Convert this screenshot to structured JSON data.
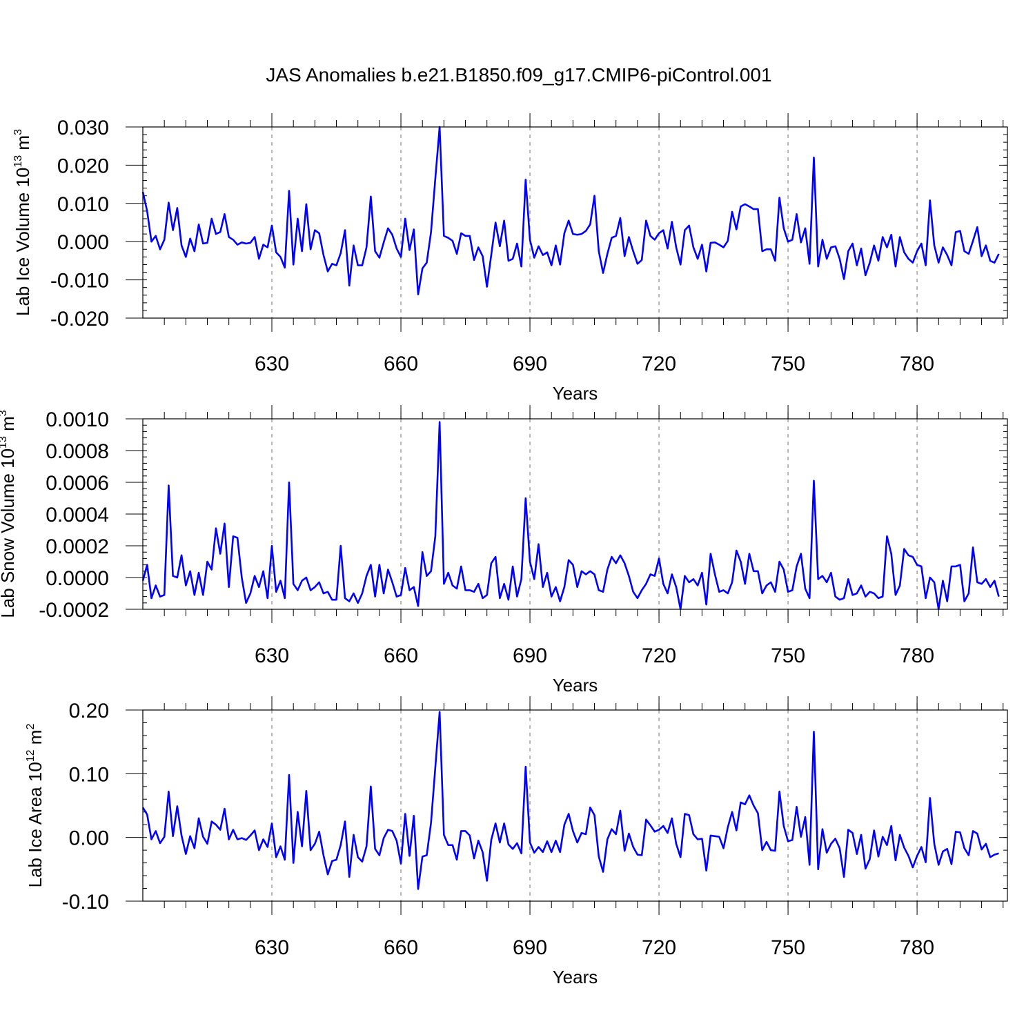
{
  "title": "JAS Anomalies b.e21.B1850.f09_g17.CMIP6-piControl.001",
  "chart_data": [
    {
      "type": "line",
      "ylabel": "Lab Ice Volume 10",
      "ylabel_sup1": "13",
      "ylabel_unit": " m",
      "ylabel_sup2": "3",
      "xlabel": "Years",
      "xlim": [
        600,
        801
      ],
      "ylim": [
        -0.02,
        0.03
      ],
      "yticks": [
        -0.02,
        -0.01,
        0.0,
        0.01,
        0.02,
        0.03
      ],
      "ytick_labels": [
        "-0.020",
        "-0.010",
        "0.000",
        "0.010",
        "0.020",
        "0.030"
      ],
      "xticks": [
        630,
        660,
        690,
        720,
        750,
        780
      ],
      "xtick_labels": [
        "630",
        "660",
        "690",
        "720",
        "750",
        "780"
      ],
      "x_start": 600,
      "color": "#0000ff",
      "values": [
        0.013,
        0.008,
        0.0,
        0.0015,
        -0.002,
        0.0005,
        0.0102,
        0.003,
        0.0088,
        -0.001,
        -0.004,
        0.0008,
        -0.0025,
        0.0045,
        -0.0005,
        -0.0003,
        0.006,
        0.002,
        0.0025,
        0.0072,
        0.0012,
        0.0005,
        -0.0008,
        -0.0002,
        -0.0005,
        -0.0003,
        0.0012,
        -0.0045,
        -0.0008,
        -0.0015,
        0.0042,
        -0.0028,
        -0.004,
        -0.0068,
        0.0133,
        -0.006,
        0.006,
        -0.0025,
        0.0098,
        -0.002,
        0.003,
        0.0022,
        -0.0035,
        -0.0078,
        -0.0058,
        -0.0062,
        -0.003,
        0.003,
        -0.0115,
        -0.001,
        -0.0062,
        -0.0062,
        -0.0015,
        0.0118,
        -0.0025,
        -0.0042,
        -0.0002,
        0.0035,
        0.0018,
        -0.0018,
        -0.004,
        0.006,
        -0.0022,
        0.0032,
        -0.0138,
        -0.007,
        -0.0055,
        0.0025,
        0.0165,
        0.03,
        0.0015,
        0.001,
        0.0002,
        -0.0032,
        0.0022,
        0.0015,
        0.0015,
        -0.0048,
        -0.0015,
        -0.0038,
        -0.0118,
        -0.0035,
        0.005,
        -0.0012,
        0.0055,
        -0.005,
        -0.0045,
        -0.0005,
        -0.0065,
        0.0162,
        0.0005,
        -0.0042,
        -0.0012,
        -0.0035,
        -0.0028,
        -0.0062,
        -0.001,
        -0.006,
        0.0022,
        0.0055,
        0.002,
        0.0018,
        0.002,
        0.0028,
        0.0045,
        0.012,
        -0.0025,
        -0.0082,
        -0.0032,
        0.001,
        0.0015,
        0.0062,
        -0.0038,
        0.0012,
        -0.0025,
        -0.0058,
        -0.0048,
        0.0055,
        0.0015,
        0.0005,
        0.0022,
        0.003,
        -0.0018,
        0.0052,
        -0.0015,
        -0.006,
        0.003,
        0.0042,
        -0.0015,
        -0.0045,
        -0.0008,
        -0.0078,
        -0.0003,
        -0.0002,
        -0.0008,
        -0.0015,
        0.0002,
        0.0078,
        0.0032,
        0.0092,
        0.0098,
        0.0092,
        0.0085,
        0.0085,
        -0.0025,
        -0.002,
        -0.002,
        -0.005,
        0.0115,
        0.0035,
        0.0,
        0.0005,
        0.0072,
        -0.0002,
        0.0035,
        -0.0058,
        0.022,
        -0.0065,
        0.0005,
        -0.0045,
        -0.0015,
        -0.0012,
        -0.0045,
        -0.0098,
        -0.0025,
        -0.0005,
        -0.0062,
        -0.0018,
        -0.0088,
        -0.0055,
        -0.001,
        -0.005,
        0.0012,
        -0.0015,
        0.0018,
        -0.0065,
        0.0012,
        -0.0028,
        -0.0045,
        -0.0055,
        -0.0025,
        -0.0005,
        -0.0062,
        0.0108,
        -0.001,
        -0.0055,
        -0.0015,
        -0.0035,
        -0.0062,
        0.0025,
        0.0028,
        -0.0025,
        -0.0032,
        0.0002,
        0.0038,
        -0.0038,
        -0.001,
        -0.005,
        -0.0055,
        -0.0032
      ]
    },
    {
      "type": "line",
      "ylabel": "Lab Snow Volume 10",
      "ylabel_sup1": "13",
      "ylabel_unit": " m",
      "ylabel_sup2": "3",
      "xlabel": "Years",
      "xlim": [
        600,
        801
      ],
      "ylim": [
        -0.0002,
        0.001
      ],
      "yticks": [
        -0.0002,
        0.0,
        0.0002,
        0.0004,
        0.0006,
        0.0008,
        0.001
      ],
      "ytick_labels": [
        "-0.0002",
        "0.0000",
        "0.0002",
        "0.0004",
        "0.0006",
        "0.0008",
        "0.0010"
      ],
      "xticks": [
        630,
        660,
        690,
        720,
        750,
        780
      ],
      "xtick_labels": [
        "630",
        "660",
        "690",
        "720",
        "750",
        "780"
      ],
      "x_start": 600,
      "color": "#0000ff",
      "values": [
        -2e-05,
        8e-05,
        -0.00013,
        -5e-05,
        -0.00012,
        -0.00011,
        0.00058,
        1e-05,
        0.0,
        0.00014,
        -5e-05,
        4e-05,
        -0.00011,
        3e-05,
        -0.00011,
        0.0001,
        5e-05,
        0.00031,
        0.00015,
        0.00034,
        -6e-05,
        0.00026,
        0.00025,
        0.0,
        -0.00016,
        -0.0001,
        1e-05,
        -6e-05,
        4e-05,
        -0.00013,
        0.0002,
        -9e-05,
        -2e-05,
        -0.00013,
        0.0006,
        -4e-05,
        -8e-05,
        -2e-05,
        0.0,
        -8e-05,
        -6e-05,
        -3e-05,
        -0.0001,
        -9e-05,
        -0.00014,
        -0.00014,
        0.0002,
        -0.00013,
        -0.00015,
        -0.0001,
        -0.00016,
        -0.0001,
        1e-05,
        8e-05,
        -0.00012,
        8e-05,
        -0.0001,
        5e-05,
        -3e-05,
        -0.00012,
        -0.00011,
        6e-05,
        -8e-05,
        -6e-05,
        -0.00018,
        0.00016,
        1e-05,
        4e-05,
        0.00026,
        0.00098,
        -4e-05,
        3e-05,
        -5e-05,
        -7e-05,
        7e-05,
        -8e-05,
        -8e-05,
        -9e-05,
        -4e-05,
        -0.00013,
        -0.00011,
        9e-05,
        0.00013,
        -0.00013,
        -4e-05,
        -0.00014,
        7e-05,
        -0.00012,
        -1e-05,
        0.0005,
        0.0001,
        -1e-05,
        0.00021,
        -6e-05,
        3e-05,
        -0.00012,
        -6e-05,
        -0.00015,
        -6e-05,
        0.00011,
        8e-05,
        -6e-05,
        4e-05,
        2e-05,
        4e-05,
        2e-05,
        -8e-05,
        -9e-05,
        5e-05,
        0.00013,
        9e-05,
        0.00014,
        9e-05,
        1e-05,
        -9e-05,
        -0.00013,
        -8e-05,
        -4e-05,
        2e-05,
        1e-05,
        0.00012,
        -4e-05,
        -0.0001,
        2e-05,
        -6e-05,
        -0.0002,
        1e-05,
        -3e-05,
        -1e-05,
        -5e-05,
        3e-05,
        -0.00017,
        0.00015,
        2e-05,
        -9e-05,
        -8e-05,
        -0.0001,
        -3e-05,
        0.00017,
        0.0001,
        -4e-05,
        0.00015,
        4e-05,
        4e-05,
        -0.0001,
        -5e-05,
        -3e-05,
        -9e-05,
        0.0001,
        5e-05,
        -9e-05,
        -8e-05,
        7e-05,
        0.00015,
        -7e-05,
        -0.00013,
        0.00061,
        -1e-05,
        1e-05,
        -3e-05,
        3e-05,
        -0.00012,
        -0.00014,
        -0.00013,
        -1e-05,
        -0.00011,
        -0.0001,
        -5e-05,
        -0.00012,
        -9e-05,
        -0.0001,
        -0.00013,
        -0.00012,
        0.00026,
        0.00015,
        -0.00011,
        -5e-05,
        0.00018,
        0.00014,
        0.00013,
        8e-05,
        7e-05,
        -0.00013,
        0.0,
        -3e-05,
        -0.0002,
        -2e-05,
        -0.00015,
        7e-05,
        7e-05,
        8e-05,
        -0.00015,
        -0.0001,
        0.00019,
        -3e-05,
        -4e-05,
        -1e-05,
        -6e-05,
        -2e-05,
        -0.00012
      ]
    },
    {
      "type": "line",
      "ylabel": "Lab Ice Area 10",
      "ylabel_sup1": "12",
      "ylabel_unit": " m",
      "ylabel_sup2": "2",
      "xlabel": "Years",
      "xlim": [
        600,
        801
      ],
      "ylim": [
        -0.1,
        0.2
      ],
      "yticks": [
        -0.1,
        0.0,
        0.1,
        0.2
      ],
      "ytick_labels": [
        "-0.10",
        "0.00",
        "0.10",
        "0.20"
      ],
      "xticks": [
        630,
        660,
        690,
        720,
        750,
        780
      ],
      "xtick_labels": [
        "630",
        "660",
        "690",
        "720",
        "750",
        "780"
      ],
      "x_start": 600,
      "color": "#0000ff",
      "values": [
        0.047,
        0.036,
        -0.003,
        0.01,
        -0.009,
        0.001,
        0.072,
        0.002,
        0.049,
        0.003,
        -0.026,
        0.002,
        -0.017,
        0.03,
        0.001,
        -0.01,
        0.025,
        0.02,
        0.012,
        0.045,
        -0.003,
        0.012,
        -0.003,
        -0.001,
        -0.004,
        0.003,
        0.011,
        -0.02,
        -0.003,
        -0.015,
        0.022,
        -0.031,
        -0.014,
        -0.035,
        0.098,
        -0.04,
        0.04,
        -0.014,
        0.073,
        -0.02,
        -0.01,
        0.009,
        -0.028,
        -0.058,
        -0.037,
        -0.035,
        -0.012,
        0.025,
        -0.062,
        0.004,
        -0.031,
        -0.038,
        -0.014,
        0.08,
        -0.018,
        -0.028,
        -0.001,
        0.012,
        0.01,
        -0.005,
        -0.041,
        0.037,
        -0.029,
        0.034,
        -0.081,
        -0.03,
        -0.028,
        0.023,
        0.11,
        0.197,
        0.004,
        -0.012,
        -0.012,
        -0.035,
        0.01,
        0.01,
        0.003,
        -0.033,
        -0.005,
        -0.023,
        -0.068,
        -0.004,
        0.022,
        -0.008,
        0.022,
        -0.011,
        -0.018,
        -0.009,
        -0.025,
        0.111,
        -0.008,
        -0.024,
        -0.015,
        -0.023,
        -0.006,
        -0.023,
        -0.005,
        -0.023,
        0.02,
        0.037,
        0.01,
        -0.008,
        0.007,
        0.005,
        0.047,
        0.035,
        -0.03,
        -0.054,
        -0.003,
        0.013,
        0.005,
        0.042,
        -0.021,
        0.006,
        -0.015,
        -0.027,
        -0.028,
        0.028,
        0.019,
        0.009,
        0.012,
        0.018,
        0.007,
        0.03,
        -0.01,
        -0.031,
        0.037,
        0.035,
        0.005,
        -0.003,
        -0.002,
        -0.052,
        0.003,
        0.002,
        0.001,
        -0.017,
        0.016,
        0.04,
        0.011,
        0.055,
        0.052,
        0.066,
        0.05,
        0.038,
        -0.02,
        -0.007,
        -0.02,
        -0.021,
        0.072,
        0.018,
        -0.006,
        -0.004,
        0.048,
        0.001,
        0.032,
        -0.043,
        0.166,
        -0.05,
        0.013,
        -0.024,
        -0.01,
        -0.002,
        -0.017,
        -0.062,
        0.012,
        0.007,
        -0.026,
        0.004,
        -0.049,
        -0.034,
        0.011,
        -0.03,
        0.001,
        -0.012,
        0.018,
        -0.036,
        0.004,
        -0.016,
        -0.029,
        -0.047,
        -0.029,
        -0.015,
        -0.039,
        0.062,
        -0.01,
        -0.043,
        -0.022,
        -0.018,
        -0.042,
        0.009,
        0.008,
        -0.017,
        -0.028,
        0.01,
        0.006,
        -0.019,
        -0.01,
        -0.031,
        -0.027,
        -0.025
      ]
    }
  ]
}
